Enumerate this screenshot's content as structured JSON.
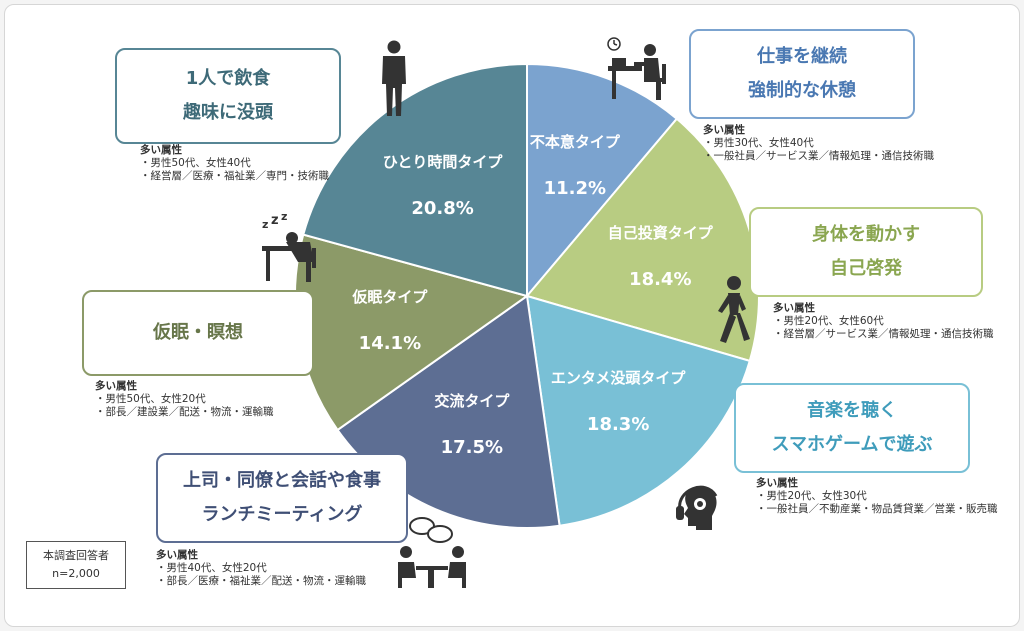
{
  "chart_data": {
    "type": "pie",
    "slices": [
      {
        "label": "不本意タイプ",
        "value": 11.2,
        "pct": "11.2%",
        "color": "#7ba3cf"
      },
      {
        "label": "自己投資タイプ",
        "value": 18.4,
        "pct": "18.4%",
        "color": "#b8cc82"
      },
      {
        "label": "エンタメ没頭タイプ",
        "value": 18.3,
        "pct": "18.3%",
        "color": "#79c0d6"
      },
      {
        "label": "交流タイプ",
        "value": 17.5,
        "pct": "17.5%",
        "color": "#5d6e93"
      },
      {
        "label": "仮眠タイプ",
        "value": 14.1,
        "pct": "14.1%",
        "color": "#8c9a68"
      },
      {
        "label": "ひとり時間タイプ",
        "value": 20.8,
        "pct": "20.8%",
        "color": "#578695"
      }
    ]
  },
  "callouts": [
    {
      "line1": "仕事を継続",
      "line2": "強制的な休憩",
      "color": "#7ba3cf",
      "attr_title": "多い属性",
      "attr1": "・男性30代、女性40代",
      "attr2": "・一般社員／サービス業／情報処理・通信技術職",
      "icon": "desk-worker-clock-icon"
    },
    {
      "line1": "身体を動かす",
      "line2": "自己啓発",
      "color": "#b8cc82",
      "attr_title": "多い属性",
      "attr1": "・男性20代、女性60代",
      "attr2": "・経営層／サービス業／情報処理・通信技術職",
      "icon": "walking-person-icon"
    },
    {
      "line1": "音楽を聴く",
      "line2": "スマホゲームで遊ぶ",
      "color": "#79c0d6",
      "attr_title": "多い属性",
      "attr1": "・男性20代、女性30代",
      "attr2": "・一般社員／不動産業・物品賃貸業／営業・販売職",
      "icon": "headphones-head-icon"
    },
    {
      "line1": "上司・同僚と会話や食事",
      "line2": "ランチミーティング",
      "color": "#5d6e93",
      "attr_title": "多い属性",
      "attr1": "・男性40代、女性20代",
      "attr2": "・部長／医療・福祉業／配送・物流・運輸職",
      "icon": "meeting-people-icon"
    },
    {
      "line1": "仮眠・瞑想",
      "line2": "",
      "color": "#8c9a68",
      "attr_title": "多い属性",
      "attr1": "・男性50代、女性20代",
      "attr2": "・部長／建設業／配送・物流・運輸職",
      "icon": "sleeping-at-desk-icon"
    },
    {
      "line1": "1人で飲食",
      "line2": "趣味に没頭",
      "color": "#578695",
      "attr_title": "多い属性",
      "attr1": "・男性50代、女性40代",
      "attr2": "・経営層／医療・福祉業／専門・技術職",
      "icon": "standing-person-icon"
    }
  ],
  "respondents": {
    "line1": "本調査回答者",
    "line2": "n=2,000"
  }
}
